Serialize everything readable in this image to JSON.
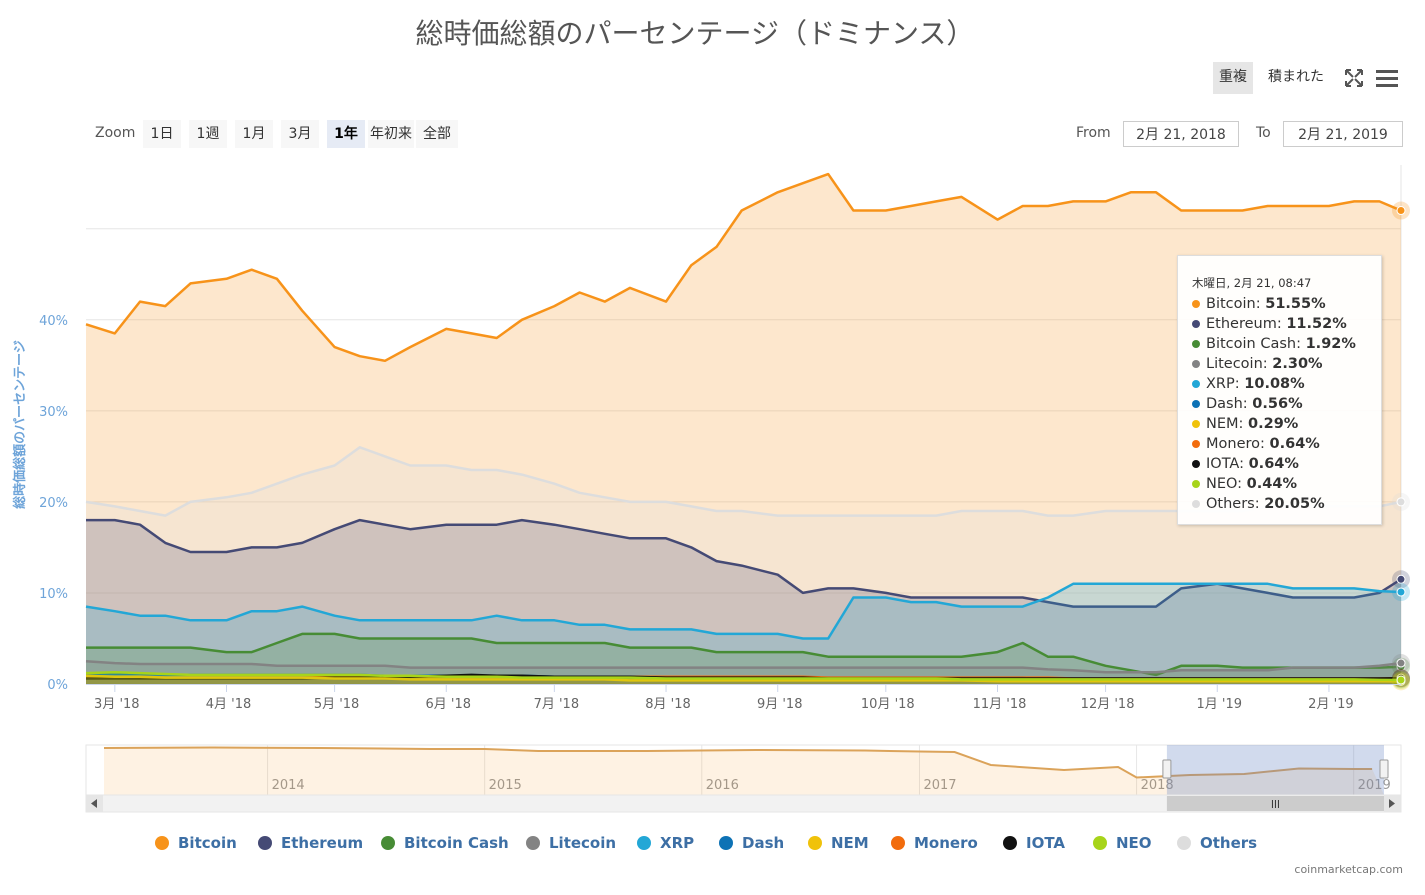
{
  "title": "総時価総額のパーセンテージ（ドミナンス）",
  "toolbar": {
    "overlap": "重複",
    "stacked": "積まれた"
  },
  "zoom": {
    "label": "Zoom",
    "buttons": [
      "1日",
      "1週",
      "1月",
      "3月",
      "1年",
      "年初来",
      "全部"
    ],
    "selected": "1年"
  },
  "range": {
    "from_label": "From",
    "from": "2月 21, 2018",
    "to_label": "To",
    "to": "2月 21, 2019"
  },
  "tooltip": {
    "header": "木曜日, 2月 21, 08:47",
    "rows": [
      {
        "name": "Bitcoin",
        "value": "51.55%",
        "color": "#f7931a"
      },
      {
        "name": "Ethereum",
        "value": "11.52%",
        "color": "#454a75"
      },
      {
        "name": "Bitcoin Cash",
        "value": "1.92%",
        "color": "#478c35"
      },
      {
        "name": "Litecoin",
        "value": "2.30%",
        "color": "#838383"
      },
      {
        "name": "XRP",
        "value": "10.08%",
        "color": "#23a7d6"
      },
      {
        "name": "Dash",
        "value": "0.56%",
        "color": "#0d72b5"
      },
      {
        "name": "NEM",
        "value": "0.29%",
        "color": "#f0c20a"
      },
      {
        "name": "Monero",
        "value": "0.64%",
        "color": "#f26c0d"
      },
      {
        "name": "IOTA",
        "value": "0.64%",
        "color": "#111111"
      },
      {
        "name": "NEO",
        "value": "0.44%",
        "color": "#a7d41a"
      },
      {
        "name": "Others",
        "value": "20.05%",
        "color": "#dddddd"
      }
    ]
  },
  "legend": [
    {
      "name": "Bitcoin",
      "color": "#f7931a"
    },
    {
      "name": "Ethereum",
      "color": "#454a75"
    },
    {
      "name": "Bitcoin Cash",
      "color": "#478c35"
    },
    {
      "name": "Litecoin",
      "color": "#838383"
    },
    {
      "name": "XRP",
      "color": "#23a7d6"
    },
    {
      "name": "Dash",
      "color": "#0d72b5"
    },
    {
      "name": "NEM",
      "color": "#f0c20a"
    },
    {
      "name": "Monero",
      "color": "#f26c0d"
    },
    {
      "name": "IOTA",
      "color": "#111111"
    },
    {
      "name": "NEO",
      "color": "#a7d41a"
    },
    {
      "name": "Others",
      "color": "#dddddd"
    }
  ],
  "credits": "coinmarketcap.com",
  "navigator": {
    "year_labels": [
      "2014",
      "2015",
      "2016",
      "2017",
      "2018",
      "2019"
    ]
  },
  "chart_data": {
    "type": "area",
    "title": "総時価総額のパーセンテージ（ドミナンス）",
    "xlabel": "",
    "ylabel": "総時価総額のパーセンテージ",
    "y_ticks": [
      "0%",
      "10%",
      "20%",
      "30%",
      "40%"
    ],
    "ylim": [
      0,
      57
    ],
    "x_tick_labels": [
      "3月 '18",
      "4月 '18",
      "5月 '18",
      "6月 '18",
      "7月 '18",
      "8月 '18",
      "9月 '18",
      "10月 '18",
      "11月 '18",
      "12月 '18",
      "1月 '19",
      "2月 '19"
    ],
    "x": [
      "2018-02-21",
      "2018-03-01",
      "2018-03-08",
      "2018-03-15",
      "2018-03-22",
      "2018-04-01",
      "2018-04-08",
      "2018-04-15",
      "2018-04-22",
      "2018-05-01",
      "2018-05-08",
      "2018-05-15",
      "2018-05-22",
      "2018-06-01",
      "2018-06-08",
      "2018-06-15",
      "2018-06-22",
      "2018-07-01",
      "2018-07-08",
      "2018-07-15",
      "2018-07-22",
      "2018-08-01",
      "2018-08-08",
      "2018-08-15",
      "2018-08-22",
      "2018-09-01",
      "2018-09-08",
      "2018-09-15",
      "2018-09-22",
      "2018-10-01",
      "2018-10-08",
      "2018-10-15",
      "2018-10-22",
      "2018-11-01",
      "2018-11-08",
      "2018-11-15",
      "2018-11-22",
      "2018-12-01",
      "2018-12-08",
      "2018-12-15",
      "2018-12-22",
      "2019-01-01",
      "2019-01-08",
      "2019-01-15",
      "2019-01-22",
      "2019-02-01",
      "2019-02-08",
      "2019-02-15",
      "2019-02-21"
    ],
    "series": [
      {
        "name": "Bitcoin",
        "color": "#f7931a",
        "values": [
          39.5,
          38.5,
          42,
          41.5,
          44,
          44.5,
          45.5,
          44.5,
          41,
          37,
          36,
          35.5,
          37,
          39,
          38.5,
          38,
          40,
          41.5,
          43,
          42,
          43.5,
          42,
          46,
          48,
          52,
          54,
          55,
          56,
          52,
          52,
          52.5,
          53,
          53.5,
          51,
          52.5,
          52.5,
          53,
          53,
          54,
          54,
          52,
          52,
          52,
          52.5,
          52.5,
          52.5,
          53,
          53,
          52
        ]
      },
      {
        "name": "Ethereum",
        "color": "#454a75",
        "values": [
          18,
          18,
          17.5,
          15.5,
          14.5,
          14.5,
          15,
          15,
          15.5,
          17,
          18,
          17.5,
          17,
          17.5,
          17.5,
          17.5,
          18,
          17.5,
          17,
          16.5,
          16,
          16,
          15,
          13.5,
          13,
          12,
          10,
          10.5,
          10.5,
          10,
          9.5,
          9.5,
          9.5,
          9.5,
          9.5,
          9,
          8.5,
          8.5,
          8.5,
          8.5,
          10.5,
          11,
          10.5,
          10,
          9.5,
          9.5,
          9.5,
          10,
          11.5
        ]
      },
      {
        "name": "Bitcoin Cash",
        "color": "#478c35",
        "values": [
          4,
          4,
          4,
          4,
          4,
          3.5,
          3.5,
          4.5,
          5.5,
          5.5,
          5,
          5,
          5,
          5,
          5,
          4.5,
          4.5,
          4.5,
          4.5,
          4.5,
          4,
          4,
          4,
          3.5,
          3.5,
          3.5,
          3.5,
          3,
          3,
          3,
          3,
          3,
          3,
          3.5,
          4.5,
          3,
          3,
          2,
          1.5,
          1,
          2,
          2,
          1.8,
          1.8,
          1.8,
          1.8,
          1.8,
          1.8,
          1.9
        ]
      },
      {
        "name": "Litecoin",
        "color": "#838383",
        "values": [
          2.5,
          2.3,
          2.2,
          2.2,
          2.2,
          2.2,
          2.2,
          2,
          2,
          2,
          2,
          2,
          1.8,
          1.8,
          1.8,
          1.8,
          1.8,
          1.8,
          1.8,
          1.8,
          1.8,
          1.8,
          1.8,
          1.8,
          1.8,
          1.8,
          1.8,
          1.8,
          1.8,
          1.8,
          1.8,
          1.8,
          1.8,
          1.8,
          1.8,
          1.6,
          1.5,
          1.3,
          1.3,
          1.3,
          1.5,
          1.5,
          1.5,
          1.5,
          1.8,
          1.8,
          1.8,
          2,
          2.3
        ]
      },
      {
        "name": "XRP",
        "color": "#23a7d6",
        "values": [
          8.5,
          8,
          7.5,
          7.5,
          7,
          7,
          8,
          8,
          8.5,
          7.5,
          7,
          7,
          7,
          7,
          7,
          7.5,
          7,
          7,
          6.5,
          6.5,
          6,
          6,
          6,
          5.5,
          5.5,
          5.5,
          5,
          5,
          9.5,
          9.5,
          9,
          9,
          8.5,
          8.5,
          8.5,
          9.5,
          11,
          11,
          11,
          11,
          11,
          11,
          11,
          11,
          10.5,
          10.5,
          10.5,
          10.2,
          10.1
        ]
      },
      {
        "name": "Dash",
        "color": "#0d72b5",
        "values": [
          1.1,
          1.1,
          1.1,
          1,
          1,
          1,
          1,
          1,
          1,
          1,
          1,
          0.9,
          0.9,
          0.9,
          0.9,
          0.9,
          0.9,
          0.8,
          0.8,
          0.8,
          0.8,
          0.8,
          0.8,
          0.7,
          0.7,
          0.7,
          0.7,
          0.7,
          0.7,
          0.7,
          0.7,
          0.7,
          0.7,
          0.7,
          0.7,
          0.6,
          0.6,
          0.6,
          0.6,
          0.6,
          0.6,
          0.6,
          0.6,
          0.6,
          0.6,
          0.6,
          0.6,
          0.6,
          0.56
        ]
      },
      {
        "name": "NEM",
        "color": "#f0c20a",
        "values": [
          0.9,
          0.8,
          0.8,
          0.7,
          0.7,
          0.7,
          0.7,
          0.7,
          0.7,
          0.6,
          0.6,
          0.6,
          0.5,
          0.5,
          0.5,
          0.5,
          0.5,
          0.5,
          0.5,
          0.5,
          0.4,
          0.4,
          0.4,
          0.4,
          0.4,
          0.4,
          0.4,
          0.4,
          0.4,
          0.4,
          0.4,
          0.4,
          0.4,
          0.3,
          0.3,
          0.3,
          0.3,
          0.3,
          0.3,
          0.3,
          0.3,
          0.3,
          0.3,
          0.3,
          0.3,
          0.3,
          0.3,
          0.3,
          0.29
        ]
      },
      {
        "name": "Monero",
        "color": "#f26c0d",
        "values": [
          0.8,
          0.8,
          0.8,
          0.7,
          0.7,
          0.7,
          0.7,
          0.7,
          0.7,
          0.8,
          0.8,
          0.8,
          0.8,
          0.8,
          0.8,
          0.8,
          0.8,
          0.8,
          0.8,
          0.8,
          0.8,
          0.8,
          0.8,
          0.8,
          0.8,
          0.8,
          0.8,
          0.7,
          0.7,
          0.7,
          0.7,
          0.7,
          0.7,
          0.7,
          0.7,
          0.7,
          0.6,
          0.6,
          0.6,
          0.6,
          0.6,
          0.6,
          0.6,
          0.6,
          0.6,
          0.6,
          0.6,
          0.6,
          0.64
        ]
      },
      {
        "name": "IOTA",
        "color": "#111111",
        "values": [
          0.6,
          0.6,
          0.6,
          0.6,
          0.6,
          0.6,
          0.6,
          0.6,
          0.6,
          0.7,
          0.7,
          0.7,
          0.8,
          0.9,
          1,
          0.9,
          0.9,
          0.8,
          0.8,
          0.8,
          0.8,
          0.7,
          0.7,
          0.7,
          0.7,
          0.7,
          0.7,
          0.6,
          0.6,
          0.6,
          0.6,
          0.6,
          0.6,
          0.6,
          0.6,
          0.6,
          0.6,
          0.6,
          0.6,
          0.6,
          0.6,
          0.6,
          0.6,
          0.6,
          0.6,
          0.6,
          0.6,
          0.6,
          0.64
        ]
      },
      {
        "name": "NEO",
        "color": "#a7d41a",
        "values": [
          1.2,
          1.3,
          1.2,
          1.1,
          1,
          1,
          1,
          1,
          1,
          1,
          1,
          0.9,
          0.9,
          0.8,
          0.8,
          0.8,
          0.7,
          0.7,
          0.7,
          0.7,
          0.7,
          0.6,
          0.6,
          0.6,
          0.6,
          0.6,
          0.6,
          0.6,
          0.6,
          0.6,
          0.6,
          0.6,
          0.5,
          0.5,
          0.5,
          0.5,
          0.5,
          0.5,
          0.5,
          0.5,
          0.5,
          0.5,
          0.5,
          0.5,
          0.5,
          0.5,
          0.5,
          0.45,
          0.44
        ]
      },
      {
        "name": "Others",
        "color": "#dddddd",
        "values": [
          20,
          19.5,
          19,
          18.5,
          20,
          20.5,
          21,
          22,
          23,
          24,
          26,
          25,
          24,
          24,
          23.5,
          23.5,
          23,
          22,
          21,
          20.5,
          20,
          20,
          19.5,
          19,
          19,
          18.5,
          18.5,
          18.5,
          18.5,
          18.5,
          18.5,
          18.5,
          19,
          19,
          19,
          18.5,
          18.5,
          19,
          19,
          19,
          19,
          19,
          19,
          19.5,
          19.5,
          19.5,
          19.5,
          19.5,
          20
        ]
      }
    ],
    "navigator": {
      "type": "area",
      "series_name": "Bitcoin",
      "x": [
        "2013-04",
        "2013-10",
        "2014-04",
        "2014-10",
        "2015-01",
        "2015-04",
        "2015-10",
        "2016-04",
        "2016-10",
        "2017-01",
        "2017-03",
        "2017-05",
        "2017-07",
        "2017-09",
        "2017-12",
        "2018-01",
        "2018-04",
        "2018-07",
        "2018-10",
        "2019-01",
        "2019-02"
      ],
      "values": [
        94,
        95,
        94,
        92,
        92,
        88,
        88,
        90,
        89,
        87,
        86,
        60,
        55,
        50,
        56,
        35,
        40,
        42,
        53,
        52,
        52
      ],
      "ylim": [
        0,
        100
      ],
      "selected_range": [
        "2018-02-21",
        "2019-02-21"
      ]
    },
    "grid": true,
    "legend_position": "bottom"
  }
}
